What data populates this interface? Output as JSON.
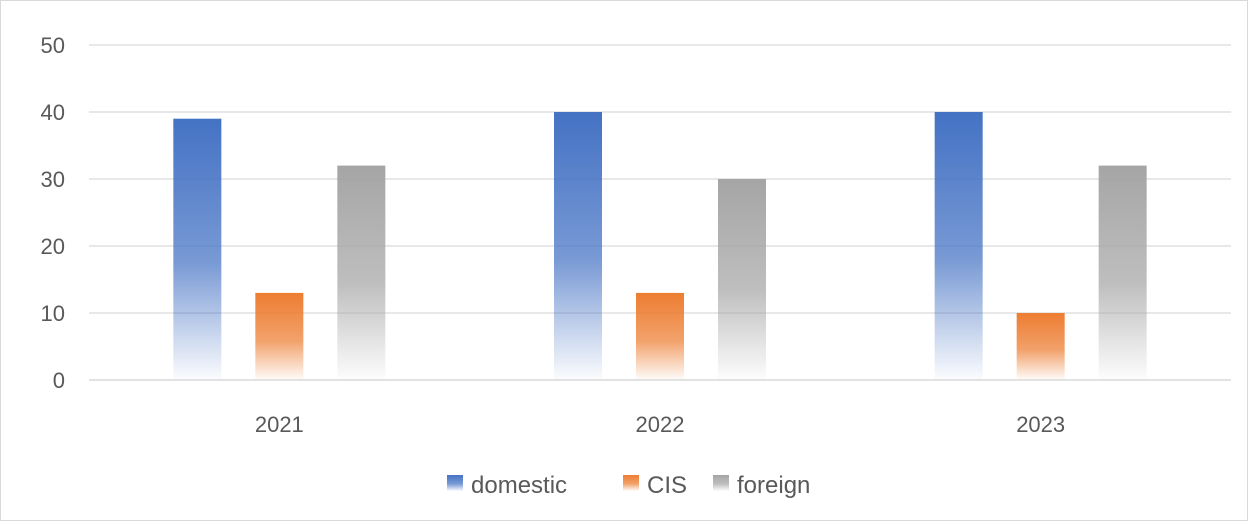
{
  "chart_data": {
    "type": "bar",
    "categories": [
      "2021",
      "2022",
      "2023"
    ],
    "series": [
      {
        "name": "domestic",
        "values": [
          39,
          40,
          40
        ],
        "color": "#4472c4"
      },
      {
        "name": "CIS",
        "values": [
          13,
          13,
          10
        ],
        "color": "#ed7d31"
      },
      {
        "name": "foreign",
        "values": [
          32,
          30,
          32
        ],
        "color": "#a5a5a5"
      }
    ],
    "y_ticks": [
      "0",
      "10",
      "20",
      "30",
      "40",
      "50"
    ],
    "ylim": [
      0,
      50
    ],
    "grid": true,
    "legend_position": "bottom",
    "fill_style": "gradient-fade-to-white"
  }
}
